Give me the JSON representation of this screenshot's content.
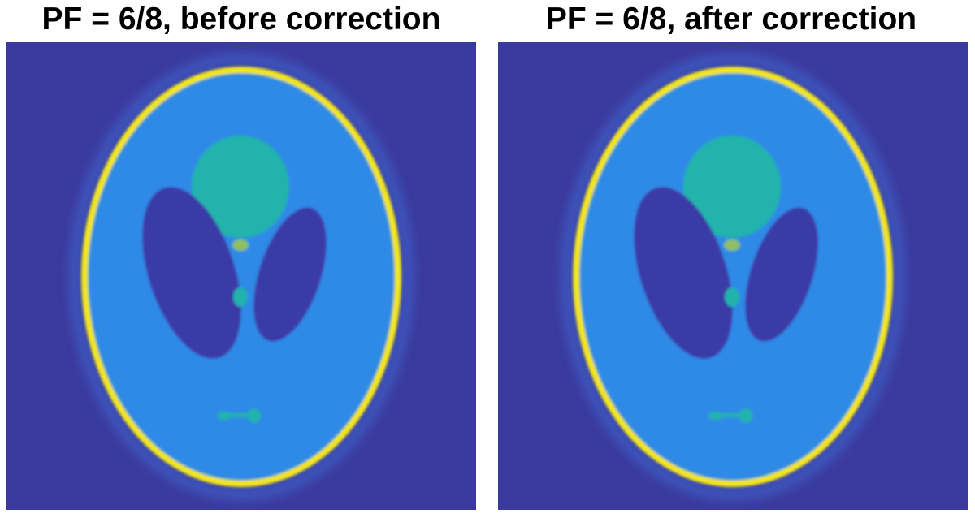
{
  "panels": [
    {
      "title": "PF = 6/8, before correction"
    },
    {
      "title": "PF = 6/8, after correction"
    }
  ]
}
